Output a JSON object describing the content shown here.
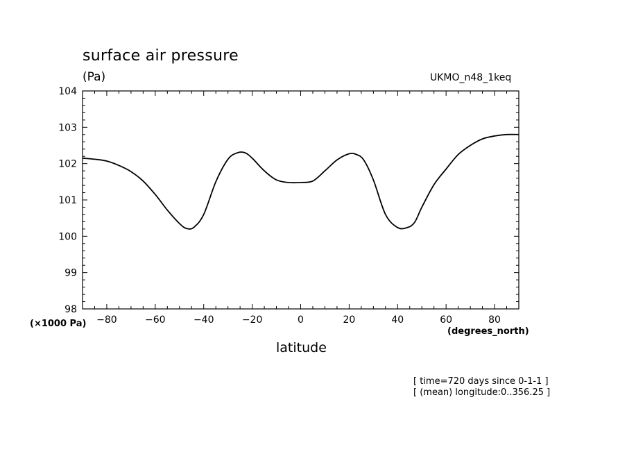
{
  "header": {
    "title": "surface air pressure",
    "units": "(Pa)",
    "model": "UKMO_n48_1keq"
  },
  "axis_notes": {
    "y_scale": "(×1000 Pa)",
    "x_units": "(degrees_north)"
  },
  "footer": {
    "time": "[ time=720 days since 0-1-1 ]",
    "longitude": "[ (mean) longitude:0..356.25 ]"
  },
  "chart_data": {
    "type": "line",
    "title": "surface air pressure",
    "ylabel": "(Pa)",
    "xlabel": "latitude",
    "xlim": [
      -90,
      90
    ],
    "ylim": [
      98,
      104
    ],
    "xticks": [
      -80,
      -60,
      -40,
      -20,
      0,
      20,
      40,
      60,
      80
    ],
    "yticks": [
      98,
      99,
      100,
      101,
      102,
      103,
      104
    ],
    "grid": false,
    "series": [
      {
        "x": [
          -90,
          -85,
          -80,
          -75,
          -70,
          -65,
          -60,
          -55,
          -50,
          -47,
          -44,
          -40,
          -35,
          -30,
          -26,
          -23,
          -20,
          -15,
          -10,
          -5,
          0,
          5,
          10,
          15,
          20,
          23,
          26,
          30,
          35,
          40,
          44,
          47,
          50,
          55,
          60,
          65,
          70,
          75,
          80,
          85,
          90
        ],
        "y": [
          102.15,
          102.12,
          102.07,
          101.95,
          101.78,
          101.52,
          101.15,
          100.72,
          100.35,
          100.21,
          100.25,
          100.6,
          101.5,
          102.12,
          102.3,
          102.3,
          102.15,
          101.8,
          101.55,
          101.48,
          101.48,
          101.52,
          101.8,
          102.1,
          102.27,
          102.25,
          102.1,
          101.55,
          100.6,
          100.24,
          100.24,
          100.38,
          100.8,
          101.42,
          101.85,
          102.25,
          102.5,
          102.68,
          102.76,
          102.8,
          102.8
        ]
      }
    ]
  }
}
